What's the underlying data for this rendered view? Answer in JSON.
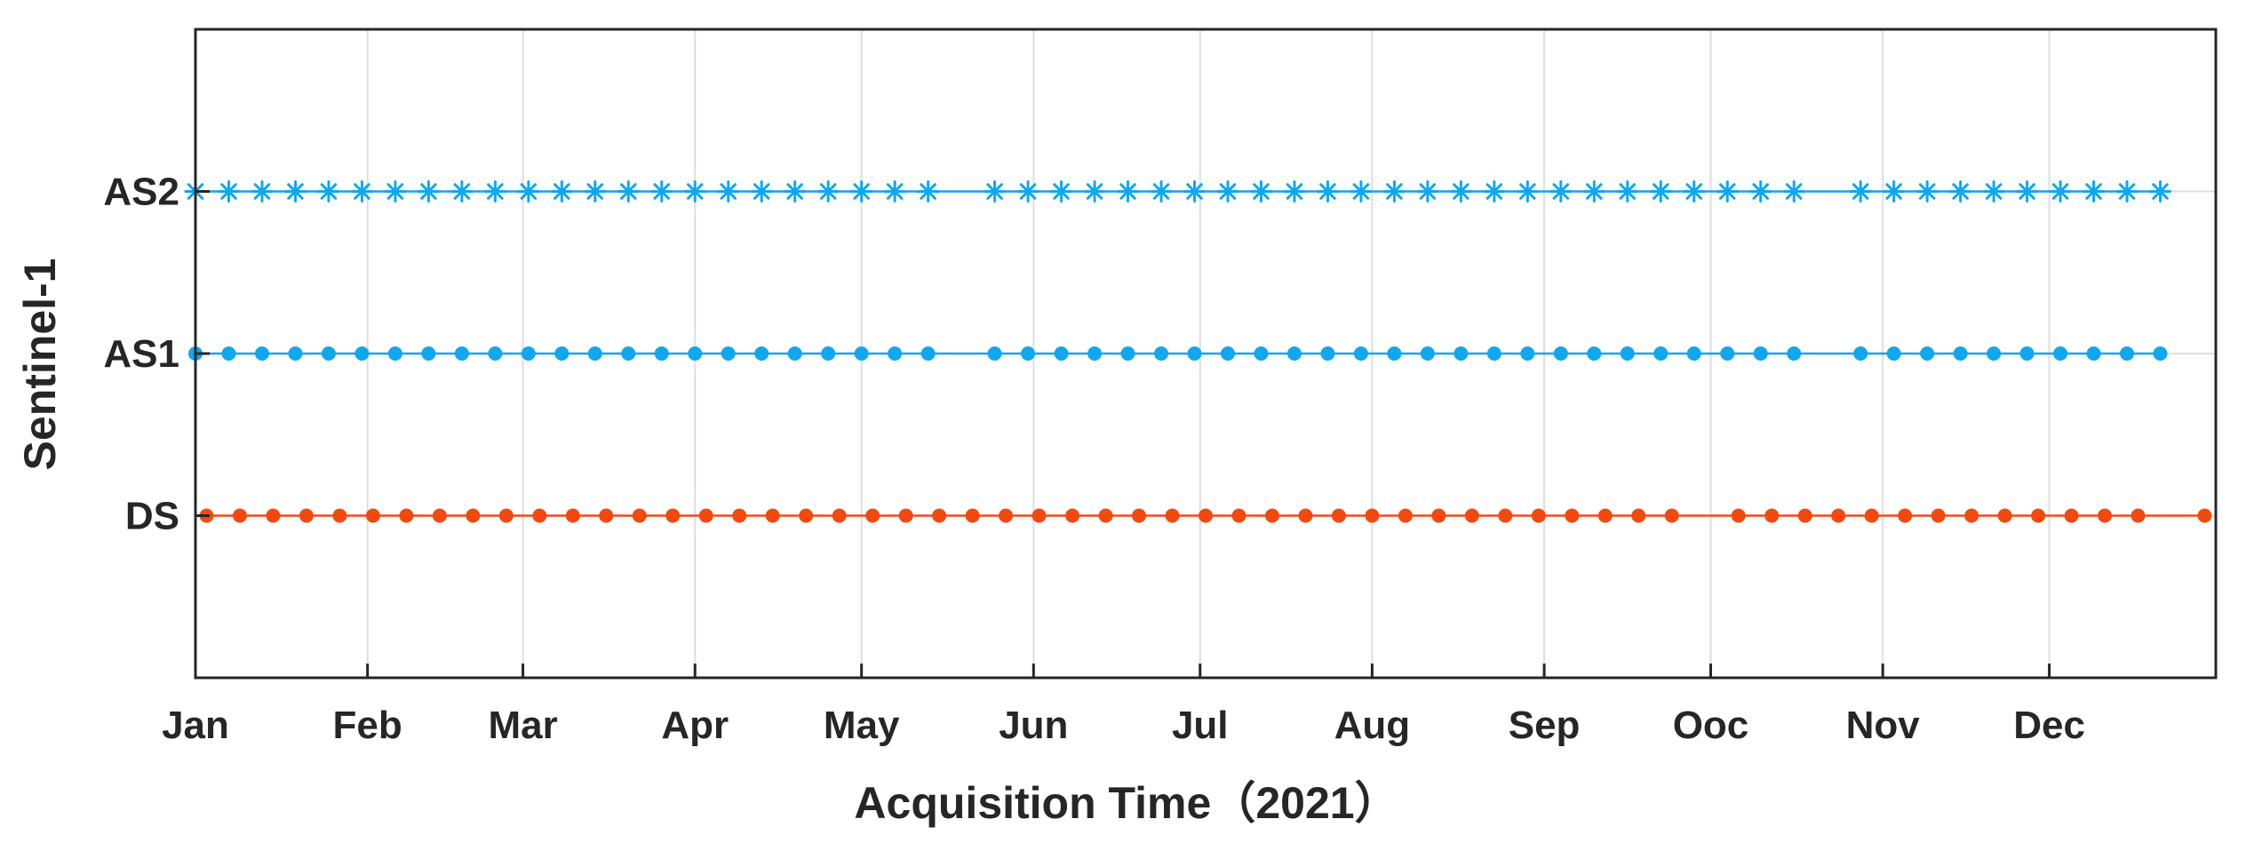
{
  "chart_data": {
    "type": "scatter",
    "title": "",
    "xlabel": "Acquisition Time（2021）",
    "ylabel": "Sentinel-1",
    "x_ticks": [
      "Jan",
      "Feb",
      "Mar",
      "Apr",
      "May",
      "Jun",
      "Jul",
      "Aug",
      "Sep",
      "Ooc",
      "Nov",
      "Dec"
    ],
    "xlim": [
      "2021-01-01",
      "2021-12-31"
    ],
    "y_categories": [
      "DS",
      "AS1",
      "AS2"
    ],
    "grid": true,
    "colors": {
      "DS": "#f04a10",
      "AS1": "#12a6ec",
      "AS2": "#12a6ec"
    },
    "series": [
      {
        "name": "AS2",
        "marker": "asterisk",
        "dates": [
          "2021-01-01",
          "2021-01-07",
          "2021-01-13",
          "2021-01-19",
          "2021-01-25",
          "2021-01-31",
          "2021-02-06",
          "2021-02-12",
          "2021-02-18",
          "2021-02-24",
          "2021-03-02",
          "2021-03-08",
          "2021-03-14",
          "2021-03-20",
          "2021-03-26",
          "2021-04-01",
          "2021-04-07",
          "2021-04-13",
          "2021-04-19",
          "2021-04-25",
          "2021-05-01",
          "2021-05-07",
          "2021-05-13",
          "2021-05-25",
          "2021-05-31",
          "2021-06-06",
          "2021-06-12",
          "2021-06-18",
          "2021-06-24",
          "2021-06-30",
          "2021-07-06",
          "2021-07-12",
          "2021-07-18",
          "2021-07-24",
          "2021-07-30",
          "2021-08-05",
          "2021-08-11",
          "2021-08-17",
          "2021-08-23",
          "2021-08-29",
          "2021-09-04",
          "2021-09-10",
          "2021-09-16",
          "2021-09-22",
          "2021-09-28",
          "2021-10-04",
          "2021-10-10",
          "2021-10-16",
          "2021-10-28",
          "2021-11-03",
          "2021-11-09",
          "2021-11-15",
          "2021-11-21",
          "2021-11-27",
          "2021-12-03",
          "2021-12-09",
          "2021-12-15",
          "2021-12-21"
        ]
      },
      {
        "name": "AS1",
        "marker": "dot",
        "dates": [
          "2021-01-01",
          "2021-01-07",
          "2021-01-13",
          "2021-01-19",
          "2021-01-25",
          "2021-01-31",
          "2021-02-06",
          "2021-02-12",
          "2021-02-18",
          "2021-02-24",
          "2021-03-02",
          "2021-03-08",
          "2021-03-14",
          "2021-03-20",
          "2021-03-26",
          "2021-04-01",
          "2021-04-07",
          "2021-04-13",
          "2021-04-19",
          "2021-04-25",
          "2021-05-01",
          "2021-05-07",
          "2021-05-13",
          "2021-05-25",
          "2021-05-31",
          "2021-06-06",
          "2021-06-12",
          "2021-06-18",
          "2021-06-24",
          "2021-06-30",
          "2021-07-06",
          "2021-07-12",
          "2021-07-18",
          "2021-07-24",
          "2021-07-30",
          "2021-08-05",
          "2021-08-11",
          "2021-08-17",
          "2021-08-23",
          "2021-08-29",
          "2021-09-04",
          "2021-09-10",
          "2021-09-16",
          "2021-09-22",
          "2021-09-28",
          "2021-10-04",
          "2021-10-10",
          "2021-10-16",
          "2021-10-28",
          "2021-11-03",
          "2021-11-09",
          "2021-11-15",
          "2021-11-21",
          "2021-11-27",
          "2021-12-03",
          "2021-12-09",
          "2021-12-15",
          "2021-12-21"
        ]
      },
      {
        "name": "DS",
        "marker": "dot",
        "dates": [
          "2021-01-03",
          "2021-01-09",
          "2021-01-15",
          "2021-01-21",
          "2021-01-27",
          "2021-02-02",
          "2021-02-08",
          "2021-02-14",
          "2021-02-20",
          "2021-02-26",
          "2021-03-04",
          "2021-03-10",
          "2021-03-16",
          "2021-03-22",
          "2021-03-28",
          "2021-04-03",
          "2021-04-09",
          "2021-04-15",
          "2021-04-21",
          "2021-04-27",
          "2021-05-03",
          "2021-05-09",
          "2021-05-15",
          "2021-05-21",
          "2021-05-27",
          "2021-06-02",
          "2021-06-08",
          "2021-06-14",
          "2021-06-20",
          "2021-06-26",
          "2021-07-02",
          "2021-07-08",
          "2021-07-14",
          "2021-07-20",
          "2021-07-26",
          "2021-08-01",
          "2021-08-07",
          "2021-08-13",
          "2021-08-19",
          "2021-08-25",
          "2021-08-31",
          "2021-09-06",
          "2021-09-12",
          "2021-09-18",
          "2021-09-24",
          "2021-10-06",
          "2021-10-12",
          "2021-10-18",
          "2021-10-24",
          "2021-10-30",
          "2021-11-05",
          "2021-11-11",
          "2021-11-17",
          "2021-11-23",
          "2021-11-29",
          "2021-12-05",
          "2021-12-11",
          "2021-12-17",
          "2021-12-29"
        ]
      }
    ]
  }
}
